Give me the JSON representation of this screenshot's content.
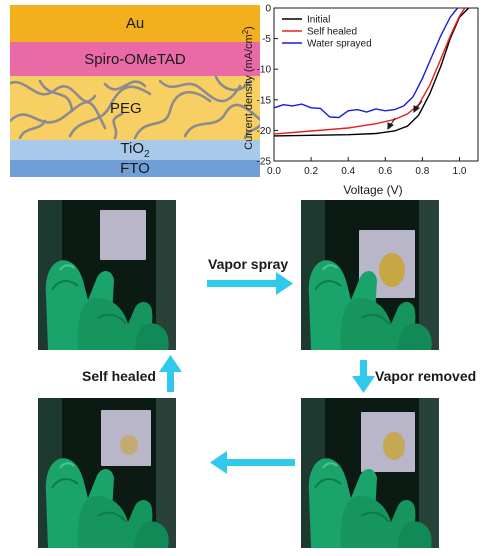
{
  "stack": {
    "layers": [
      "Au",
      "Spiro-OMeTAD",
      "PEG",
      "TiO",
      "FTO"
    ],
    "tio_subscript": "2"
  },
  "chart_data": {
    "type": "line",
    "xlabel": "Voltage (V)",
    "ylabel": "Current density (mA/cm",
    "ylabel_sup": "2",
    "ylabel_close": ")",
    "xlim": [
      0.0,
      1.1
    ],
    "ylim": [
      -25,
      0
    ],
    "xticks": [
      "0.0",
      "0.2",
      "0.4",
      "0.6",
      "0.8",
      "1.0"
    ],
    "yticks": [
      "0",
      "-5",
      "-10",
      "-15",
      "-20",
      "-25"
    ],
    "legend": "top-left",
    "series": [
      {
        "name": "Initial",
        "color": "#000000",
        "x": [
          0.0,
          0.2,
          0.4,
          0.55,
          0.65,
          0.72,
          0.78,
          0.84,
          0.9,
          0.95,
          1.0,
          1.05
        ],
        "y": [
          -20.9,
          -20.8,
          -20.7,
          -20.5,
          -20.1,
          -19.3,
          -17.5,
          -14.0,
          -9.5,
          -5.0,
          -1.5,
          0.0
        ]
      },
      {
        "name": "Self healed",
        "color": "#e8201f",
        "x": [
          0.0,
          0.2,
          0.4,
          0.55,
          0.65,
          0.72,
          0.78,
          0.84,
          0.9,
          0.95,
          1.0,
          1.03
        ],
        "y": [
          -20.6,
          -20.1,
          -19.6,
          -18.9,
          -18.2,
          -17.3,
          -15.8,
          -12.6,
          -8.3,
          -4.6,
          -1.3,
          0.0
        ]
      },
      {
        "name": "Water sprayed",
        "color": "#1a1adf",
        "x": [
          0.0,
          0.05,
          0.1,
          0.15,
          0.2,
          0.25,
          0.3,
          0.35,
          0.4,
          0.45,
          0.5,
          0.55,
          0.6,
          0.65,
          0.7,
          0.75,
          0.8,
          0.85,
          0.9,
          0.95,
          0.99
        ],
        "y": [
          -16.3,
          -15.8,
          -16.0,
          -15.7,
          -16.3,
          -16.4,
          -17.8,
          -17.9,
          -16.8,
          -16.6,
          -17.0,
          -16.5,
          -16.8,
          -16.6,
          -16.0,
          -14.5,
          -11.5,
          -8.0,
          -4.5,
          -1.5,
          0.0
        ]
      }
    ]
  },
  "process": {
    "vapor_spray": "Vapor spray",
    "vapor_removed": "Vapor removed",
    "self_healed": "Self healed"
  },
  "colors": {
    "arrow": "#2fc9ec",
    "glove": "#1aa36b",
    "background": "#0c1a14",
    "sample": "#b8b6c8",
    "stain": "#c9a32c"
  }
}
